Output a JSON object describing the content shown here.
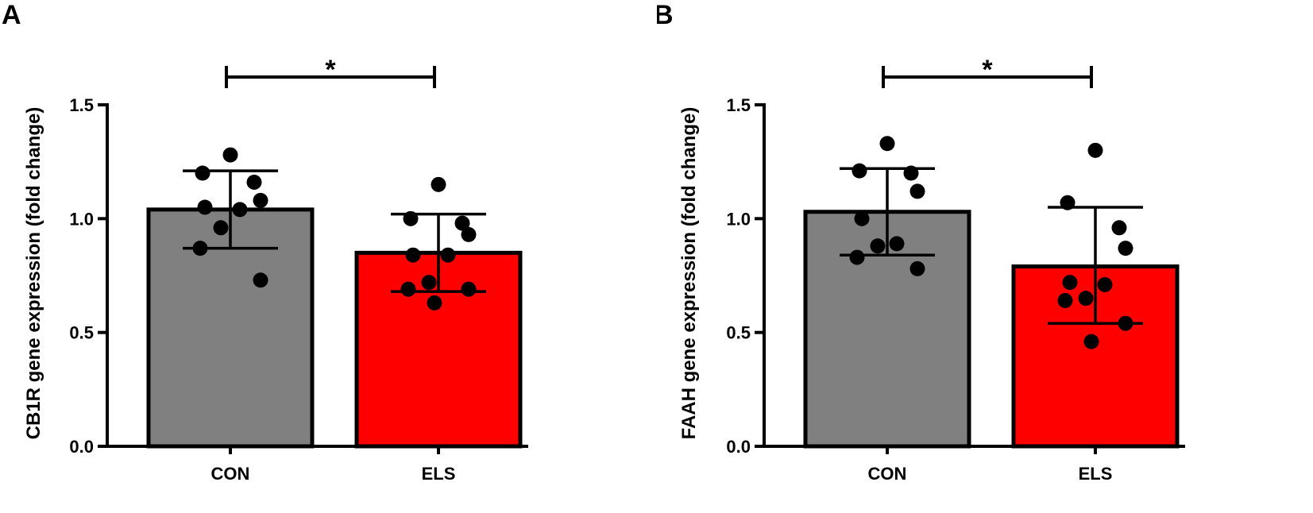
{
  "colors": {
    "CON": "#808080",
    "ELS": "#ff0000",
    "axis": "#000000",
    "point": "#000000"
  },
  "chart_data": [
    {
      "panel": "A",
      "type": "bar",
      "categories": [
        "CON",
        "ELS"
      ],
      "values": [
        1.04,
        0.85
      ],
      "error": [
        {
          "low": 0.87,
          "high": 1.21
        },
        {
          "low": 0.68,
          "high": 1.02
        }
      ],
      "points": [
        [
          1.28,
          1.2,
          1.16,
          1.08,
          1.05,
          1.04,
          0.96,
          0.87,
          0.73
        ],
        [
          1.15,
          1.0,
          0.98,
          0.93,
          0.84,
          0.84,
          0.72,
          0.69,
          0.69,
          0.63
        ]
      ],
      "ylabel": "CB1R gene expression (fold change)",
      "xlabel": "",
      "ylim": [
        0,
        1.5
      ],
      "yticks": [
        "0.0",
        "0.5",
        "1.0",
        "1.5"
      ],
      "significance": "*"
    },
    {
      "panel": "B",
      "type": "bar",
      "categories": [
        "CON",
        "ELS"
      ],
      "values": [
        1.03,
        0.79
      ],
      "error": [
        {
          "low": 0.84,
          "high": 1.22
        },
        {
          "low": 0.54,
          "high": 1.05
        }
      ],
      "points": [
        [
          1.33,
          1.21,
          1.2,
          1.12,
          1.0,
          0.89,
          0.88,
          0.83,
          0.78
        ],
        [
          1.3,
          1.07,
          0.96,
          0.87,
          0.72,
          0.71,
          0.65,
          0.64,
          0.54,
          0.46
        ]
      ],
      "ylabel": "FAAH gene expression (fold change)",
      "xlabel": "",
      "ylim": [
        0,
        1.5
      ],
      "yticks": [
        "0.0",
        "0.5",
        "1.0",
        "1.5"
      ],
      "significance": "*"
    }
  ]
}
